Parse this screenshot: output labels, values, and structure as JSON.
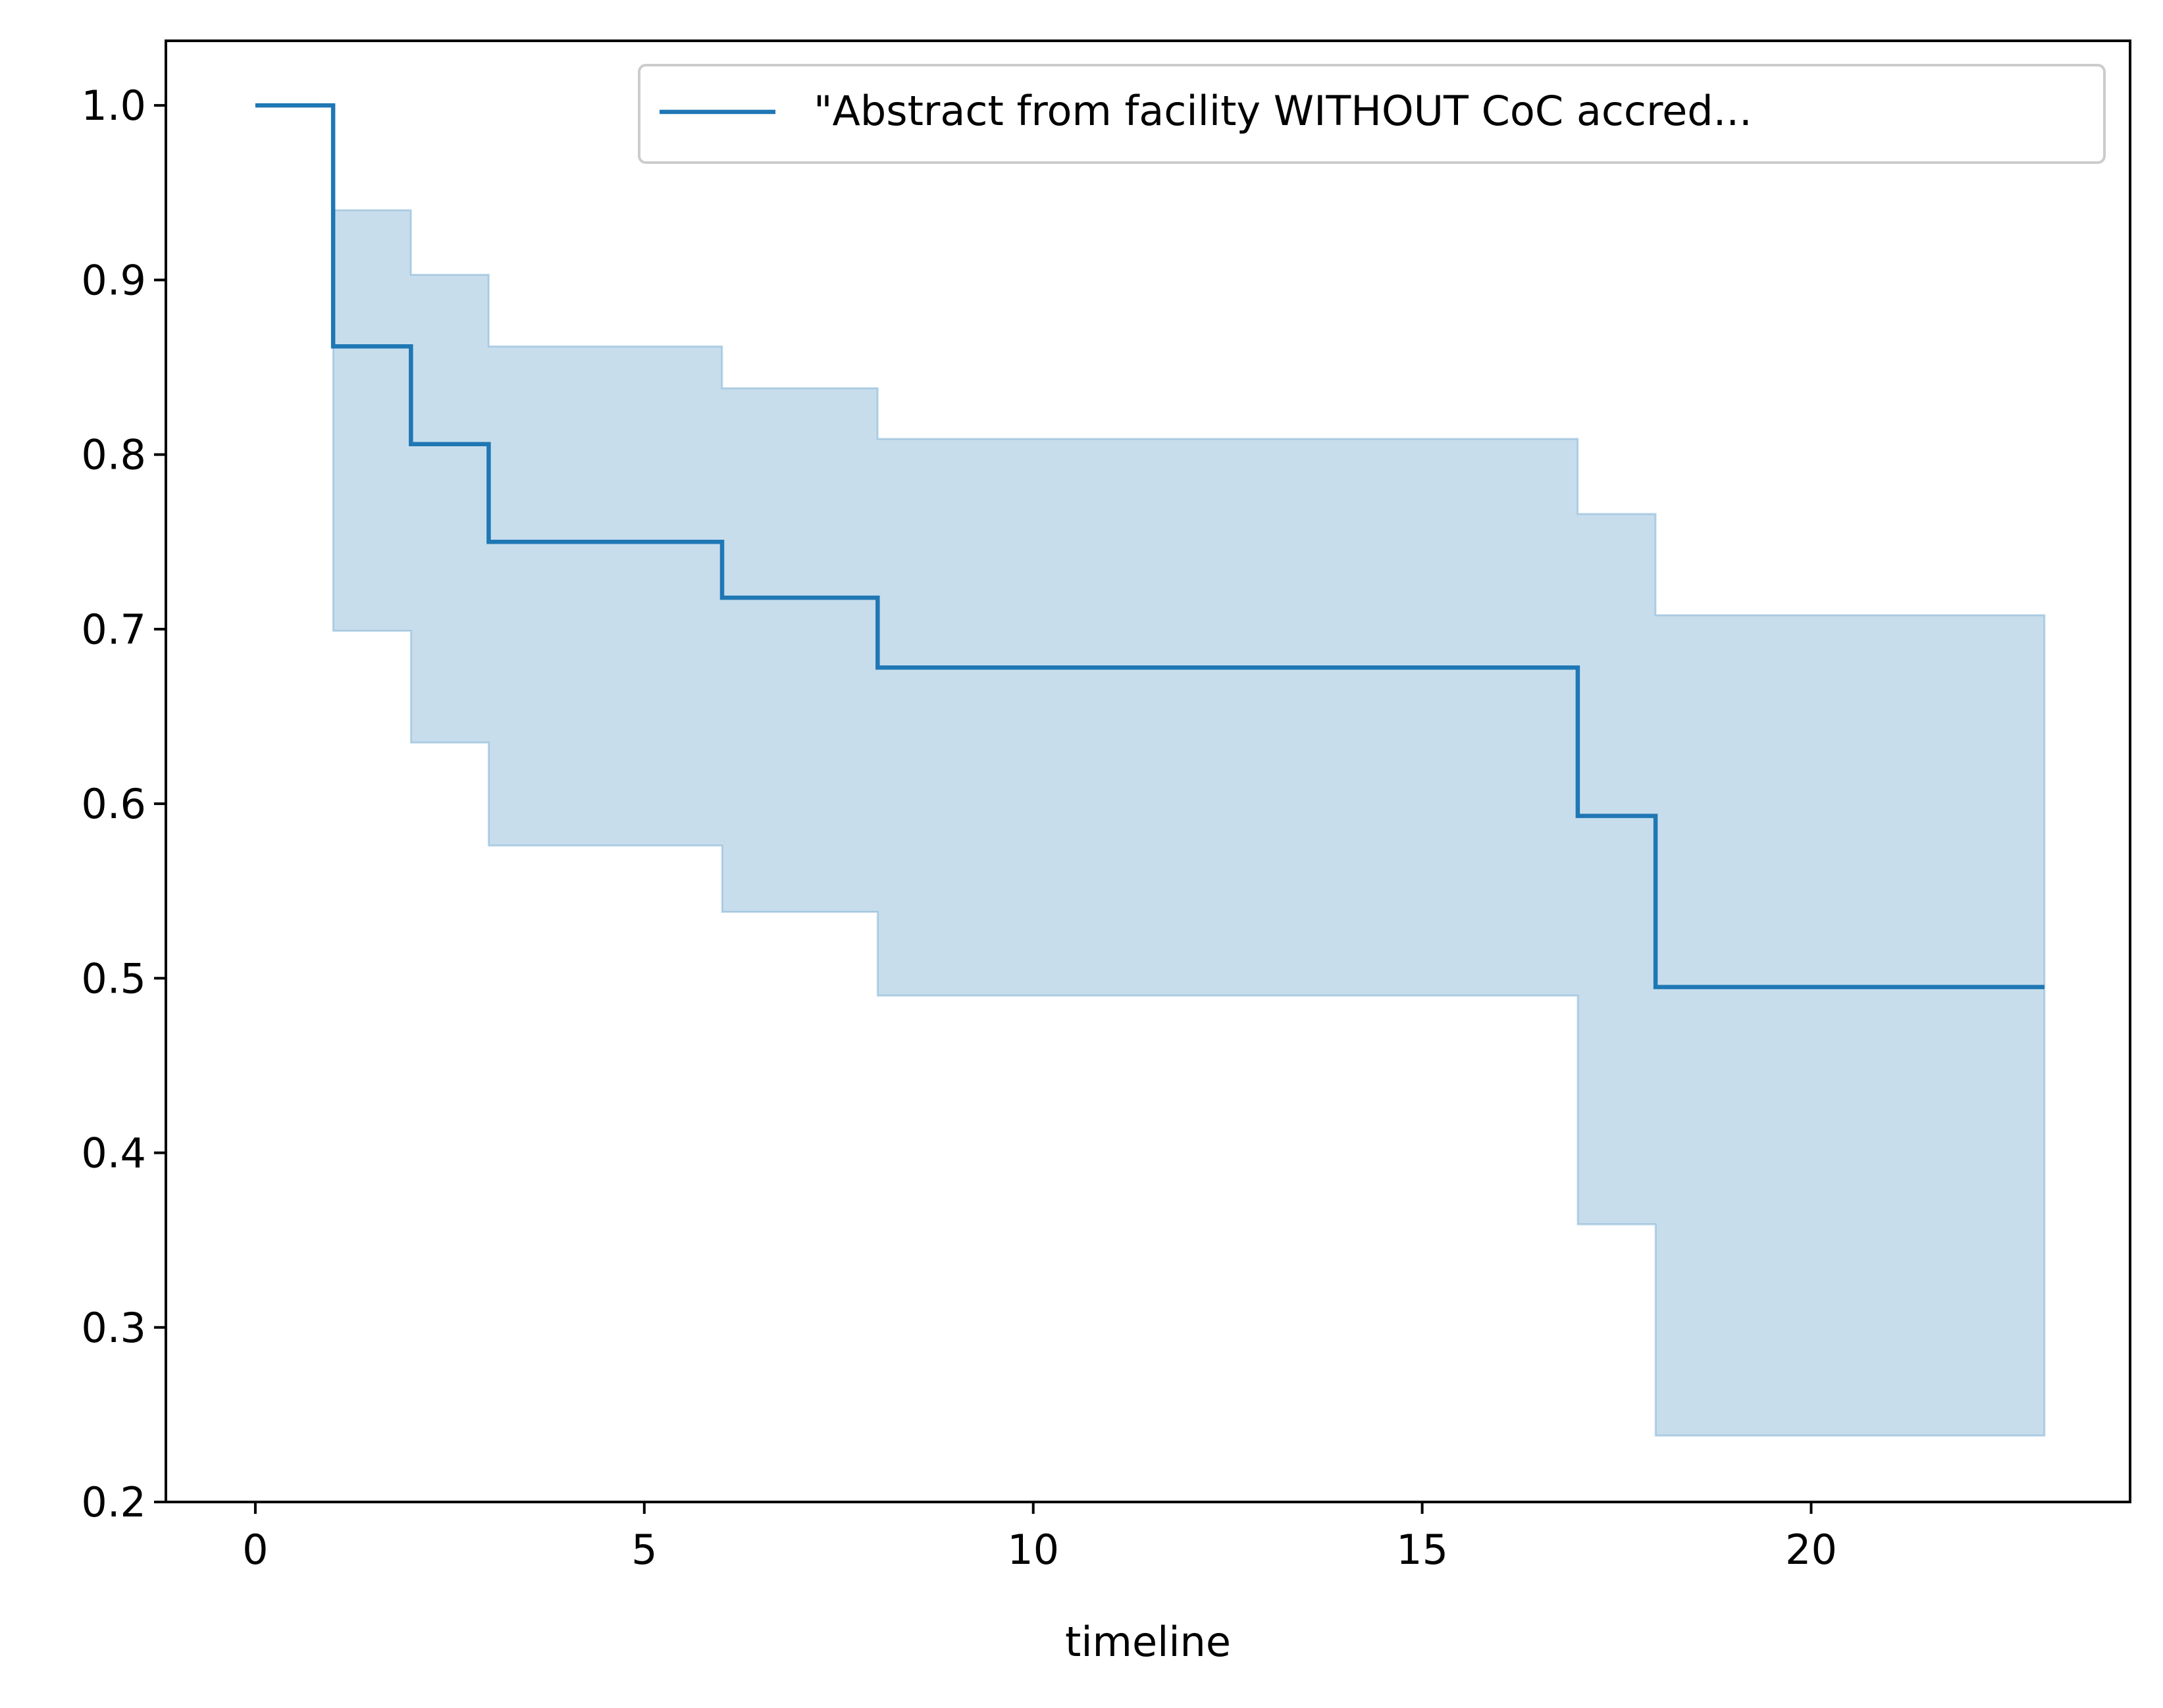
{
  "chart_data": {
    "type": "line",
    "subtype": "kaplan-meier-survival-step",
    "title": "",
    "xlabel": "timeline",
    "ylabel": "",
    "xlim": [
      -1.15,
      24.1
    ],
    "ylim": [
      0.2,
      1.037
    ],
    "x_ticks": [
      0,
      5,
      10,
      15,
      20
    ],
    "x_tick_labels": [
      "0",
      "5",
      "10",
      "15",
      "20"
    ],
    "y_ticks": [
      0.2,
      0.3,
      0.4,
      0.5,
      0.6,
      0.7,
      0.8,
      0.9,
      1.0
    ],
    "y_tick_labels": [
      "0.2",
      "0.3",
      "0.4",
      "0.5",
      "0.6",
      "0.7",
      "0.8",
      "0.9",
      "1.0"
    ],
    "grid": false,
    "legend": {
      "position": "top-right",
      "entries": [
        "\"Abstract from facility WITHOUT CoC accred..."
      ]
    },
    "colors": {
      "line": "#1f77b4",
      "band": "#1f77b4"
    },
    "series": [
      {
        "name": "\"Abstract from facility WITHOUT CoC accred...",
        "step": "post",
        "x": [
          0,
          1,
          2,
          3,
          6,
          8,
          17,
          18,
          23
        ],
        "survival": [
          1.0,
          0.862,
          0.806,
          0.75,
          0.718,
          0.678,
          0.593,
          0.495,
          0.495
        ],
        "ci_upper": [
          1.0,
          0.94,
          0.903,
          0.862,
          0.838,
          0.809,
          0.766,
          0.708,
          0.708
        ],
        "ci_lower": [
          1.0,
          0.699,
          0.635,
          0.576,
          0.538,
          0.49,
          0.359,
          0.238,
          0.238
        ]
      }
    ]
  }
}
